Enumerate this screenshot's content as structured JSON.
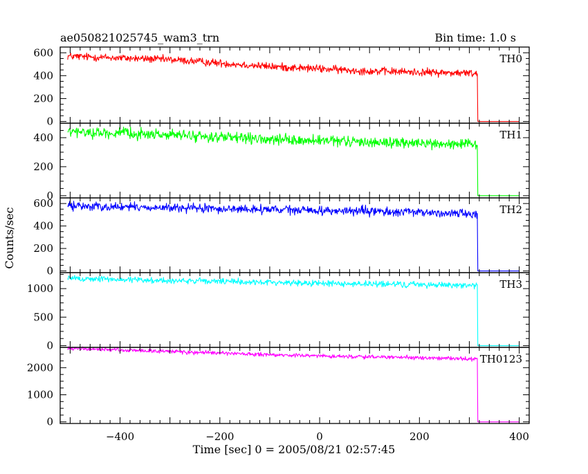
{
  "chart_data": {
    "type": "line",
    "title": "ae050821025745_wam3_trn",
    "bin_time_label": "Bin time: 1.0 s",
    "xlabel": "Time [sec] 0 = 2005/08/21 02:57:45",
    "ylabel": "Counts/sec",
    "xlim": [
      -520,
      420
    ],
    "xticks": [
      -400,
      -200,
      0,
      200,
      400
    ],
    "xtick_labels": [
      "−400",
      "−200",
      "0",
      "200",
      "400"
    ],
    "grid": false,
    "series_sampling": {
      "x_start": -505,
      "x_step": 1,
      "active_until": 316,
      "x_end": 400
    },
    "panels": [
      {
        "name": "TH0",
        "color": "#ff0000",
        "ylim": [
          -15,
          650
        ],
        "yticks": [
          0,
          200,
          400,
          600
        ],
        "ytick_labels": [
          "0",
          "200",
          "400",
          "600"
        ],
        "trend": [
          [
            -505,
            570
          ],
          [
            -300,
            540
          ],
          [
            -100,
            480
          ],
          [
            100,
            440
          ],
          [
            316,
            420
          ],
          [
            317,
            0
          ],
          [
            400,
            0
          ]
        ],
        "noise_amplitude": 28
      },
      {
        "name": "TH1",
        "color": "#00ff00",
        "ylim": [
          -15,
          500
        ],
        "yticks": [
          0,
          200,
          400
        ],
        "ytick_labels": [
          "0",
          "200",
          "400"
        ],
        "trend": [
          [
            -505,
            440
          ],
          [
            -300,
            420
          ],
          [
            -100,
            385
          ],
          [
            100,
            370
          ],
          [
            316,
            350
          ],
          [
            317,
            0
          ],
          [
            400,
            0
          ]
        ],
        "noise_amplitude": 30
      },
      {
        "name": "TH2",
        "color": "#0000ff",
        "ylim": [
          -15,
          650
        ],
        "yticks": [
          0,
          200,
          400,
          600
        ],
        "ytick_labels": [
          "0",
          "200",
          "400",
          "600"
        ],
        "trend": [
          [
            -505,
            580
          ],
          [
            -300,
            560
          ],
          [
            -100,
            545
          ],
          [
            100,
            530
          ],
          [
            316,
            510
          ],
          [
            317,
            0
          ],
          [
            400,
            0
          ]
        ],
        "noise_amplitude": 32
      },
      {
        "name": "TH3",
        "color": "#00ffff",
        "ylim": [
          -30,
          1280
        ],
        "yticks": [
          0,
          500,
          1000
        ],
        "ytick_labels": [
          "0",
          "500",
          "1000"
        ],
        "trend": [
          [
            -505,
            1180
          ],
          [
            -300,
            1140
          ],
          [
            -100,
            1110
          ],
          [
            100,
            1080
          ],
          [
            316,
            1060
          ],
          [
            317,
            0
          ],
          [
            400,
            0
          ]
        ],
        "noise_amplitude": 45
      },
      {
        "name": "TH0123",
        "color": "#ff00ff",
        "ylim": [
          -60,
          2750
        ],
        "yticks": [
          0,
          1000,
          2000
        ],
        "ytick_labels": [
          "0",
          "1000",
          "2000"
        ],
        "trend": [
          [
            -505,
            2710
          ],
          [
            -300,
            2600
          ],
          [
            -100,
            2470
          ],
          [
            100,
            2400
          ],
          [
            316,
            2320
          ],
          [
            317,
            0
          ],
          [
            400,
            0
          ]
        ],
        "noise_amplitude": 60
      }
    ]
  }
}
